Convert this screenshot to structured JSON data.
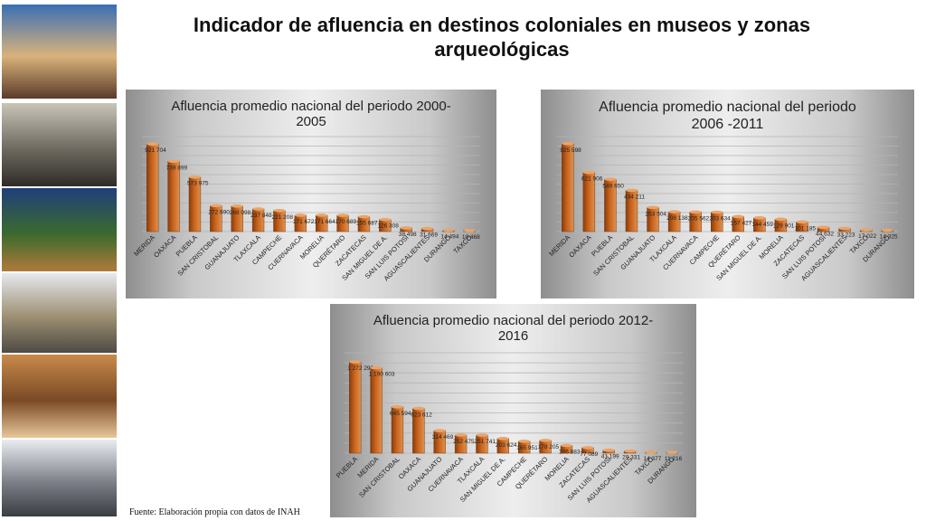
{
  "page": {
    "title": "Indicador de afluencia en destinos coloniales en museos y zonas arqueológicas",
    "source": "Fuente: Elaboración propia con datos de INAH"
  },
  "photos": [
    {
      "name": "photo-cathedral-terrace",
      "colors": [
        "#3a6fb5",
        "#d9b27a",
        "#5a3b2a"
      ]
    },
    {
      "name": "photo-colonial-street",
      "colors": [
        "#c9c4b8",
        "#6e6a60",
        "#2f2b28"
      ]
    },
    {
      "name": "photo-night-garden",
      "colors": [
        "#1f3f7a",
        "#3b6a2e",
        "#b07a3a"
      ]
    },
    {
      "name": "photo-church-plaza",
      "colors": [
        "#e6e9ef",
        "#9c8f72",
        "#4e4a44"
      ]
    },
    {
      "name": "photo-hotel-room",
      "colors": [
        "#c98a4a",
        "#7a4a26",
        "#e8c79a"
      ]
    },
    {
      "name": "photo-museum-visitors",
      "colors": [
        "#e9edf2",
        "#7d8088",
        "#3a3d42"
      ]
    }
  ],
  "chart_data": [
    {
      "type": "bar",
      "title": "Afluencia promedio nacional del periodo 2000-2005",
      "categories": [
        "MERIDA",
        "OAXACA",
        "PUEBLA",
        "SAN CRISTOBAL",
        "GUANAJUATO",
        "TLAXCALA",
        "CAMPECHE",
        "CUERNAVACA",
        "MORELIA",
        "QUERÉTARO",
        "ZACATECAS",
        "SAN MIGUEL DE A.",
        "SAN LUIS POTOSÍ",
        "AGUASCALIENTES",
        "DURANGO",
        "TAXCO"
      ],
      "values": [
        921704,
        739899,
        573975,
        272690,
        268098,
        237848,
        221208,
        171672,
        171664,
        170689,
        155687,
        126308,
        38498,
        31669,
        14494,
        10468
      ],
      "value_labels": [
        "921 704",
        "739 899",
        "573 975",
        "272 690",
        "268 098",
        "237 848",
        "221 208",
        "171 672",
        "171 664",
        "170 689",
        "155 687",
        "126 308",
        "38 498",
        "31 669",
        "14 494",
        "10 468"
      ],
      "ylim": [
        0,
        1000000
      ],
      "grid": true,
      "bar_color": "#c8641e"
    },
    {
      "type": "bar",
      "title": "Afluencia promedio nacional del periodo 2006 -2011",
      "categories": [
        "MERIDA",
        "OAXACA",
        "PUEBLA",
        "SAN CRISTOBAL",
        "GUANAJUATO",
        "TLAXCALA",
        "CUERNAVACA",
        "CAMPECHE",
        "QUERÉTARO",
        "SAN MIGUEL DE A.",
        "MORELIA",
        "ZACATECAS",
        "SAN LUIS POTOSÍ",
        "AGUASCALIENTES",
        "TAXCO",
        "DURANGO"
      ],
      "values": [
        925598,
        621906,
        549650,
        434211,
        253504,
        208138,
        205562,
        203634,
        157427,
        144459,
        129901,
        101185,
        44632,
        33223,
        17022,
        14325
      ],
      "value_labels": [
        "925 598",
        "621 906",
        "549 650",
        "434 211",
        "253 504",
        "208 138",
        "205 562",
        "203 634",
        "157 427",
        "144 459",
        "129 901",
        "101 185",
        "44 632",
        "33 223",
        "17 022",
        "14 325"
      ],
      "ylim": [
        0,
        1000000
      ],
      "grid": true,
      "bar_color": "#c8641e"
    },
    {
      "type": "bar",
      "title": "Afluencia promedio nacional del periodo 2012-2016",
      "categories": [
        "PUEBLA",
        "MERIDA",
        "SAN CRISTOBAL",
        "OAXACA",
        "GUANAJUATO",
        "CUERNAVACA",
        "TLAXCALA",
        "SAN MIGUEL DE A.",
        "CAMPECHE",
        "QUERÉTARO",
        "MORELIA",
        "ZACATECAS",
        "SAN LUIS POTOSÍ",
        "AGUASCALIENTES",
        "TAXCO",
        "DURANGO"
      ],
      "values": [
        1272296,
        1190603,
        645594,
        623612,
        314469,
        252475,
        251741,
        203624,
        165951,
        178205,
        106883,
        77089,
        41199,
        29331,
        14377,
        11216
      ],
      "value_labels": [
        "1 272 296",
        "1 190 603",
        "645 594",
        "623 612",
        "314 469",
        "252 475",
        "251 741",
        "203 624",
        "165 951",
        "178 205",
        "106 883",
        "77 089",
        "41 199",
        "29 331",
        "14 377",
        "11 216"
      ],
      "ylim": [
        0,
        1400000
      ],
      "grid": true,
      "bar_color": "#c8641e"
    }
  ]
}
